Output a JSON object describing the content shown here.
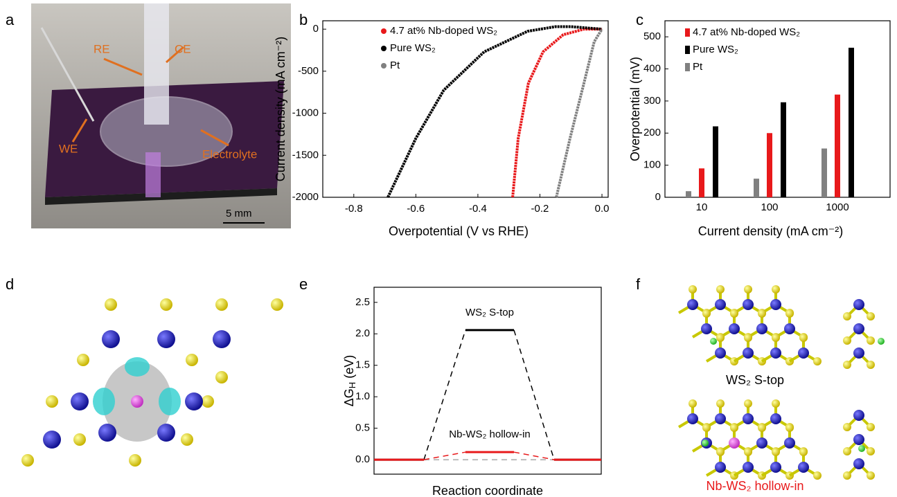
{
  "panel_labels": [
    "a",
    "b",
    "c",
    "d",
    "e",
    "f"
  ],
  "photo": {
    "labels": [
      "RE",
      "CE",
      "WE",
      "Electrolyte"
    ],
    "scale_bar": "5 mm"
  },
  "structures": {
    "labels": [
      "WS₂ S-top",
      "Nb-WS₂ hollow-in"
    ]
  },
  "chart_data": [
    {
      "type": "line",
      "x_label": "Overpotential (V vs RHE)",
      "y_label": "Current density (mA cm⁻²)",
      "xlim": [
        -0.9,
        0.02
      ],
      "xticks": [
        -0.8,
        -0.6,
        -0.4,
        -0.2,
        {
          "value": 0,
          "label": "0.0"
        }
      ],
      "ylim": [
        -2000,
        100
      ],
      "yticks": [
        0,
        -500,
        -1000,
        -1500,
        -2000
      ],
      "legend": "upper left",
      "series": [
        {
          "name": "4.7 at% Nb-doped WS₂",
          "color": "#e8191b",
          "x": [
            -0.288,
            -0.27,
            -0.237,
            -0.19,
            -0.125,
            -0.058,
            0
          ],
          "values": [
            -2000,
            -1300,
            -640,
            -270,
            -66,
            0,
            0
          ]
        },
        {
          "name": "Pure WS₂",
          "color": "#000000",
          "x": [
            -0.69,
            -0.6,
            -0.51,
            -0.38,
            -0.24,
            -0.15,
            -0.1,
            0
          ],
          "values": [
            -2000,
            -1300,
            -725,
            -270,
            -25,
            30,
            30,
            0
          ]
        },
        {
          "name": "Pt",
          "color": "#808080",
          "x": [
            -0.147,
            -0.103,
            -0.058,
            -0.025,
            0
          ],
          "values": [
            -2000,
            -1300,
            -640,
            -150,
            0
          ]
        }
      ]
    },
    {
      "type": "bar",
      "x_label": "Current density (mA cm⁻²)",
      "y_label": "Overpotential (mV)",
      "categories": [
        "10",
        "100",
        "1000"
      ],
      "ylim": [
        0,
        550
      ],
      "yticks": [
        0,
        100,
        200,
        300,
        400,
        500
      ],
      "legend": "upper left",
      "series": [
        {
          "name": "4.7 at% Nb-doped WS₂",
          "color": "#e8191b",
          "values": [
            90,
            200,
            320
          ]
        },
        {
          "name": "Pure WS₂",
          "color": "#000000",
          "values": [
            221,
            296,
            466
          ]
        },
        {
          "name": "Pt",
          "color": "#808080",
          "values": [
            19,
            58,
            152
          ]
        }
      ]
    },
    {
      "type": "energy",
      "x_label": "Reaction coordinate",
      "y_label": {
        "text": "ΔG",
        "subscript": "H",
        "unit": " (eV)"
      },
      "ylim": [
        -0.23,
        2.74
      ],
      "yticks": [
        {
          "value": 0,
          "label": "0.0"
        },
        0.5,
        {
          "value": 1,
          "label": "1.0"
        },
        1.5,
        {
          "value": 2,
          "label": "2.0"
        },
        2.5
      ],
      "baseline": 0,
      "series": [
        {
          "name": "WS₂ S-top",
          "color": "#000000",
          "values": [
            0,
            2.06,
            0
          ]
        },
        {
          "name": "Nb-WS₂ hollow-in",
          "color": "#e8191b",
          "values": [
            0,
            0.12,
            0
          ]
        }
      ]
    }
  ]
}
